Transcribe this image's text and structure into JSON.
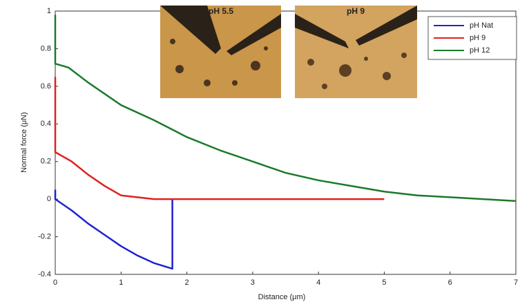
{
  "chart_data": {
    "type": "line",
    "xlabel": "Distance (μm)",
    "ylabel": "Normal force (μN)",
    "annotations": [
      "pH 5.5",
      "pH 9"
    ],
    "xlim": [
      0,
      7
    ],
    "xticks": [
      0,
      1,
      2,
      3,
      4,
      5,
      6,
      7
    ],
    "ylim": [
      -0.4,
      1
    ],
    "yticks": [
      -0.4,
      -0.2,
      0,
      0.2,
      0.4,
      0.6,
      0.8,
      1
    ],
    "legend": "upper right",
    "series": [
      {
        "name": "pH Nat",
        "color": "#2020d0",
        "x": [
          0,
          0,
          0.25,
          0.5,
          0.75,
          1.0,
          1.25,
          1.5,
          1.78,
          1.78
        ],
        "values": [
          0.05,
          0.0,
          -0.06,
          -0.13,
          -0.19,
          -0.25,
          -0.3,
          -0.34,
          -0.37,
          0.0
        ]
      },
      {
        "name": "pH 9",
        "color": "#e02020",
        "x": [
          0,
          0,
          0.25,
          0.5,
          0.75,
          1.0,
          1.5,
          2,
          3,
          4,
          5
        ],
        "values": [
          0.65,
          0.25,
          0.2,
          0.13,
          0.07,
          0.02,
          0.0,
          0.0,
          0.0,
          0.0,
          0.0
        ]
      },
      {
        "name": "pH 12",
        "color": "#1a7a2a",
        "x": [
          0,
          0,
          0.2,
          0.5,
          1,
          1.5,
          2,
          2.5,
          3,
          3.5,
          4,
          4.5,
          5,
          5.5,
          6,
          6.5,
          7
        ],
        "values": [
          0.98,
          0.72,
          0.7,
          0.62,
          0.5,
          0.42,
          0.33,
          0.26,
          0.2,
          0.14,
          0.1,
          0.07,
          0.04,
          0.02,
          0.01,
          0.0,
          -0.01
        ]
      }
    ]
  }
}
